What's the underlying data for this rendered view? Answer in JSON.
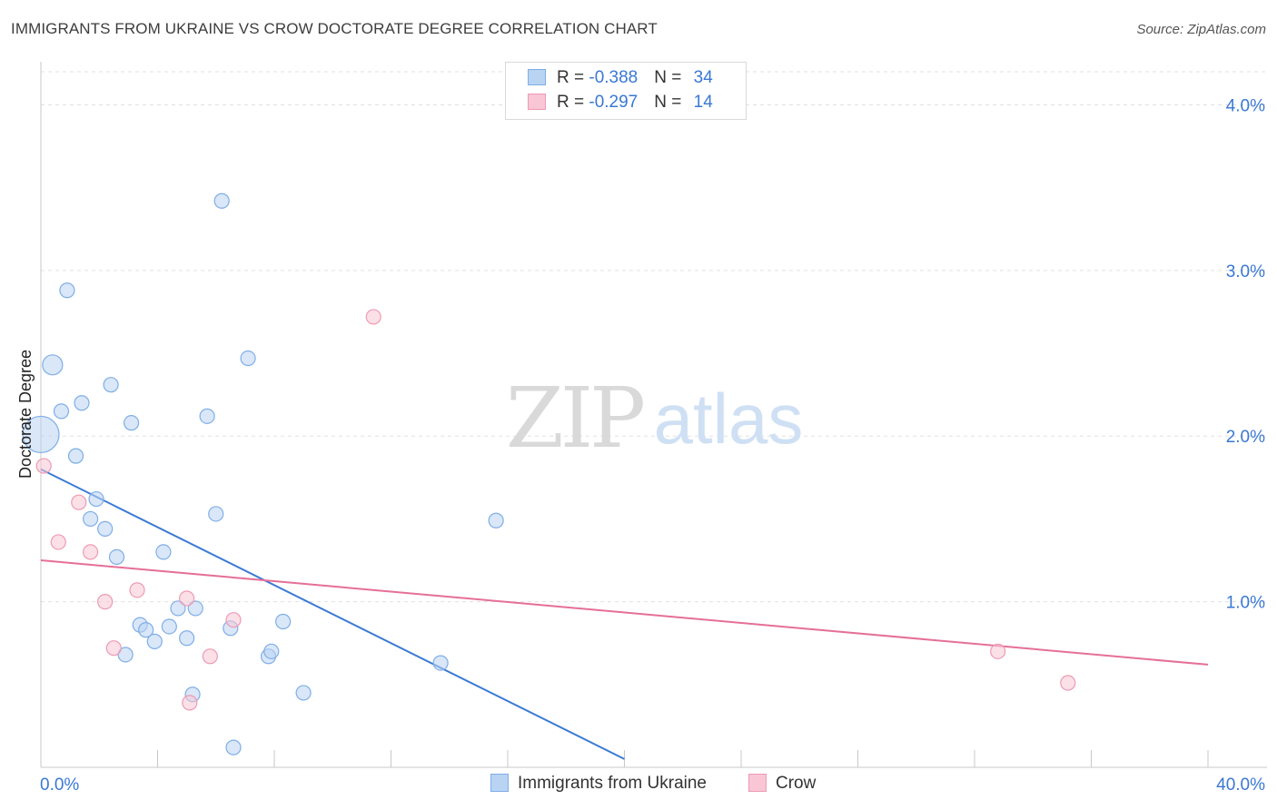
{
  "header": {
    "title": "IMMIGRANTS FROM UKRAINE VS CROW DOCTORATE DEGREE CORRELATION CHART",
    "source": "Source: ZipAtlas.com"
  },
  "watermark": {
    "zip": "ZIP",
    "atlas": "atlas"
  },
  "legend": {
    "rows": [
      {
        "r_label": "R = ",
        "r_value": "-0.388",
        "n_label": "N = ",
        "n_value": "34"
      },
      {
        "r_label": "R = ",
        "r_value": "-0.297",
        "n_label": "N = ",
        "n_value": "14"
      }
    ]
  },
  "bottom_legend": {
    "series1": "Immigrants from Ukraine",
    "series2": "Crow"
  },
  "colors": {
    "blue_fill": "#b9d3f3",
    "blue_stroke": "#7faee6",
    "blue_line": "#3a7bd5",
    "pink_fill": "#f8c6d5",
    "pink_stroke": "#ee9ab3",
    "pink_line": "#e56f98",
    "accent_text": "#3a78d4"
  },
  "chart_data": {
    "type": "scatter",
    "title": "IMMIGRANTS FROM UKRAINE VS CROW DOCTORATE DEGREE CORRELATION CHART",
    "xlabel": "",
    "ylabel": "Doctorate Degree",
    "xlim": [
      0,
      40
    ],
    "ylim": [
      0,
      4.2
    ],
    "x_tick_labels": [
      "0.0%",
      "40.0%"
    ],
    "y_ticks": [
      1,
      2,
      3,
      4
    ],
    "y_tick_labels": [
      "1.0%",
      "2.0%",
      "3.0%",
      "4.0%"
    ],
    "grid": true,
    "series": [
      {
        "name": "Immigrants from Ukraine",
        "r": -0.388,
        "n": 34,
        "trend": {
          "x": [
            0,
            20
          ],
          "y": [
            1.8,
            0.05
          ]
        },
        "points": [
          {
            "x": 0.0,
            "y": 2.01,
            "s": 3
          },
          {
            "x": 0.4,
            "y": 2.43,
            "s": 2
          },
          {
            "x": 0.7,
            "y": 2.15,
            "s": 1
          },
          {
            "x": 0.9,
            "y": 2.88,
            "s": 1
          },
          {
            "x": 1.2,
            "y": 1.88,
            "s": 1
          },
          {
            "x": 1.4,
            "y": 2.2,
            "s": 1
          },
          {
            "x": 1.7,
            "y": 1.5,
            "s": 1
          },
          {
            "x": 1.9,
            "y": 1.62,
            "s": 1
          },
          {
            "x": 2.2,
            "y": 1.44,
            "s": 1
          },
          {
            "x": 2.4,
            "y": 2.31,
            "s": 1
          },
          {
            "x": 2.6,
            "y": 1.27,
            "s": 1
          },
          {
            "x": 2.9,
            "y": 0.68,
            "s": 1
          },
          {
            "x": 3.1,
            "y": 2.08,
            "s": 1
          },
          {
            "x": 3.4,
            "y": 0.86,
            "s": 1
          },
          {
            "x": 3.6,
            "y": 0.83,
            "s": 1
          },
          {
            "x": 3.9,
            "y": 0.76,
            "s": 1
          },
          {
            "x": 4.2,
            "y": 1.3,
            "s": 1
          },
          {
            "x": 4.4,
            "y": 0.85,
            "s": 1
          },
          {
            "x": 4.7,
            "y": 0.96,
            "s": 1
          },
          {
            "x": 5.0,
            "y": 0.78,
            "s": 1
          },
          {
            "x": 5.2,
            "y": 0.44,
            "s": 1
          },
          {
            "x": 5.3,
            "y": 0.96,
            "s": 1
          },
          {
            "x": 5.7,
            "y": 2.12,
            "s": 1
          },
          {
            "x": 6.0,
            "y": 1.53,
            "s": 1
          },
          {
            "x": 6.2,
            "y": 3.42,
            "s": 1
          },
          {
            "x": 6.5,
            "y": 0.84,
            "s": 1
          },
          {
            "x": 6.6,
            "y": 0.12,
            "s": 1
          },
          {
            "x": 7.1,
            "y": 2.47,
            "s": 1
          },
          {
            "x": 7.8,
            "y": 0.67,
            "s": 1
          },
          {
            "x": 7.9,
            "y": 0.7,
            "s": 1
          },
          {
            "x": 8.3,
            "y": 0.88,
            "s": 1
          },
          {
            "x": 9.0,
            "y": 0.45,
            "s": 1
          },
          {
            "x": 13.7,
            "y": 0.63,
            "s": 1
          },
          {
            "x": 15.6,
            "y": 1.49,
            "s": 1
          }
        ]
      },
      {
        "name": "Crow",
        "r": -0.297,
        "n": 14,
        "trend": {
          "x": [
            0,
            40
          ],
          "y": [
            1.25,
            0.62
          ]
        },
        "points": [
          {
            "x": 0.1,
            "y": 1.82,
            "s": 1
          },
          {
            "x": 0.6,
            "y": 1.36,
            "s": 1
          },
          {
            "x": 1.3,
            "y": 1.6,
            "s": 1
          },
          {
            "x": 1.7,
            "y": 1.3,
            "s": 1
          },
          {
            "x": 2.2,
            "y": 1.0,
            "s": 1
          },
          {
            "x": 2.5,
            "y": 0.72,
            "s": 1
          },
          {
            "x": 3.3,
            "y": 1.07,
            "s": 1
          },
          {
            "x": 5.0,
            "y": 1.02,
            "s": 1
          },
          {
            "x": 5.1,
            "y": 0.39,
            "s": 1
          },
          {
            "x": 5.8,
            "y": 0.67,
            "s": 1
          },
          {
            "x": 6.6,
            "y": 0.89,
            "s": 1
          },
          {
            "x": 11.4,
            "y": 2.72,
            "s": 1
          },
          {
            "x": 32.8,
            "y": 0.7,
            "s": 1
          },
          {
            "x": 35.2,
            "y": 0.51,
            "s": 1
          }
        ]
      }
    ]
  }
}
